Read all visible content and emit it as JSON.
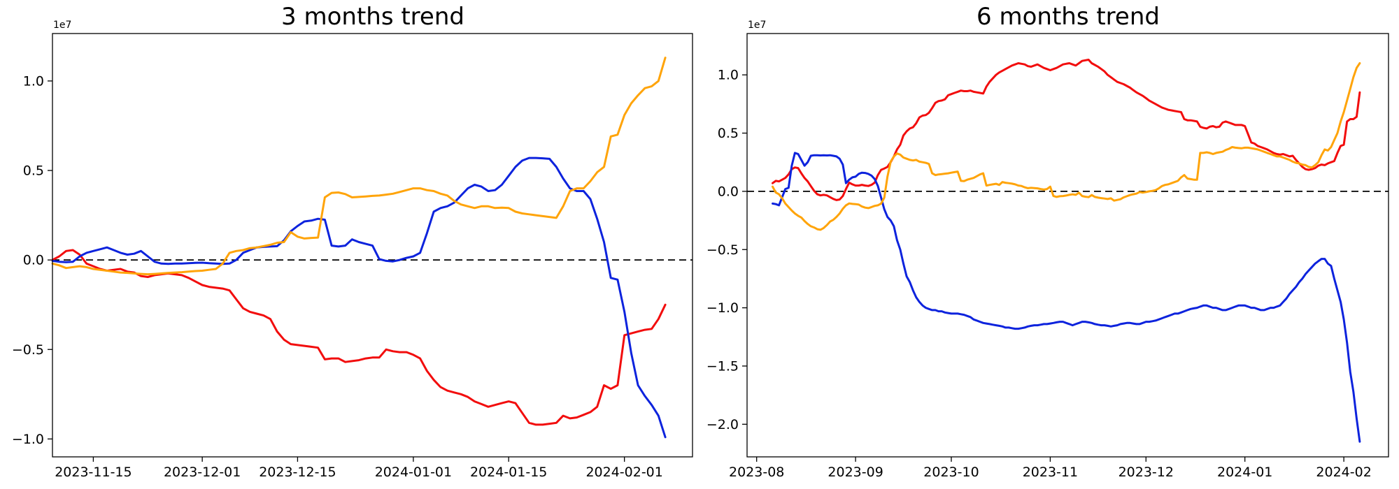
{
  "figure": {
    "background": "#ffffff"
  },
  "colors": {
    "red": "#f20d0d",
    "blue": "#0d23dd",
    "orange": "#ffa40a",
    "axis": "#000000"
  },
  "chart_data": [
    {
      "type": "line",
      "title": "3 months trend",
      "offset_label": "1e7",
      "xlabel": "",
      "ylabel": "",
      "grid": false,
      "legend": null,
      "zero_line": true,
      "xlim": [
        "2023-11-09",
        "2024-02-11"
      ],
      "ylim": [
        -1.1,
        1.265
      ],
      "yticks": [
        {
          "v": 1.0,
          "label": "1.0"
        },
        {
          "v": 0.5,
          "label": "0.5"
        },
        {
          "v": 0.0,
          "label": "0.0"
        },
        {
          "v": -0.5,
          "label": "−0.5"
        },
        {
          "v": -1.0,
          "label": "−1.0"
        }
      ],
      "xticks": [
        {
          "d": "2023-11-15",
          "label": "2023-11-15"
        },
        {
          "d": "2023-12-01",
          "label": "2023-12-01"
        },
        {
          "d": "2023-12-15",
          "label": "2023-12-15"
        },
        {
          "d": "2024-01-01",
          "label": "2024-01-01"
        },
        {
          "d": "2024-01-15",
          "label": "2024-01-15"
        },
        {
          "d": "2024-02-01",
          "label": "2024-02-01"
        }
      ],
      "unit": "1e7",
      "series": [
        {
          "name": "red",
          "color": "#f20d0d",
          "start": "2023-11-09",
          "step_days": 1,
          "values": [
            0,
            0.02,
            0.05,
            0.055,
            0.03,
            -0.02,
            -0.035,
            -0.05,
            -0.06,
            -0.055,
            -0.05,
            -0.065,
            -0.07,
            -0.09,
            -0.095,
            -0.085,
            -0.08,
            -0.075,
            -0.08,
            -0.085,
            -0.1,
            -0.12,
            -0.14,
            -0.15,
            -0.155,
            -0.16,
            -0.17,
            -0.22,
            -0.27,
            -0.29,
            -0.3,
            -0.31,
            -0.33,
            -0.4,
            -0.445,
            -0.47,
            -0.475,
            -0.48,
            -0.485,
            -0.49,
            -0.555,
            -0.55,
            -0.55,
            -0.57,
            -0.565,
            -0.56,
            -0.55,
            -0.545,
            -0.545,
            -0.5,
            -0.51,
            -0.515,
            -0.515,
            -0.53,
            -0.55,
            -0.62,
            -0.67,
            -0.71,
            -0.73,
            -0.74,
            -0.75,
            -0.765,
            -0.79,
            -0.805,
            -0.82,
            -0.81,
            -0.8,
            -0.79,
            -0.8,
            -0.855,
            -0.91,
            -0.92,
            -0.92,
            -0.915,
            -0.91,
            -0.87,
            -0.885,
            -0.88,
            -0.865,
            -0.85,
            -0.82,
            -0.7,
            -0.72,
            -0.7,
            -0.42,
            -0.41,
            -0.4,
            -0.39,
            -0.385,
            -0.33,
            -0.25
          ]
        },
        {
          "name": "blue",
          "color": "#0d23dd",
          "start": "2023-11-09",
          "step_days": 1,
          "values": [
            -0.005,
            -0.01,
            -0.012,
            -0.01,
            0.02,
            0.04,
            0.05,
            0.06,
            0.07,
            0.055,
            0.04,
            0.03,
            0.035,
            0.05,
            0.02,
            -0.01,
            -0.02,
            -0.022,
            -0.02,
            -0.02,
            -0.018,
            -0.016,
            -0.015,
            -0.018,
            -0.02,
            -0.022,
            -0.02,
            0,
            0.04,
            0.055,
            0.07,
            0.073,
            0.075,
            0.077,
            0.11,
            0.16,
            0.19,
            0.215,
            0.22,
            0.23,
            0.225,
            0.08,
            0.075,
            0.08,
            0.115,
            0.1,
            0.09,
            0.08,
            0.005,
            -0.005,
            -0.008,
            0,
            0.012,
            0.02,
            0.04,
            0.15,
            0.27,
            0.29,
            0.3,
            0.32,
            0.36,
            0.4,
            0.42,
            0.41,
            0.385,
            0.39,
            0.42,
            0.47,
            0.52,
            0.555,
            0.57,
            0.57,
            0.568,
            0.565,
            0.52,
            0.455,
            0.4,
            0.385,
            0.385,
            0.34,
            0.23,
            0.1,
            -0.1,
            -0.11,
            -0.29,
            -0.52,
            -0.7,
            -0.76,
            -0.81,
            -0.87,
            -0.99
          ]
        },
        {
          "name": "orange",
          "color": "#ffa40a",
          "start": "2023-11-09",
          "step_days": 1,
          "values": [
            -0.02,
            -0.03,
            -0.045,
            -0.04,
            -0.035,
            -0.04,
            -0.05,
            -0.055,
            -0.06,
            -0.065,
            -0.07,
            -0.072,
            -0.075,
            -0.078,
            -0.08,
            -0.078,
            -0.075,
            -0.072,
            -0.07,
            -0.068,
            -0.065,
            -0.062,
            -0.06,
            -0.055,
            -0.05,
            -0.02,
            0.04,
            0.05,
            0.055,
            0.066,
            0.07,
            0.077,
            0.085,
            0.096,
            0.1,
            0.155,
            0.13,
            0.12,
            0.123,
            0.125,
            0.35,
            0.375,
            0.377,
            0.368,
            0.35,
            0.352,
            0.355,
            0.358,
            0.36,
            0.365,
            0.37,
            0.38,
            0.39,
            0.4,
            0.4,
            0.39,
            0.385,
            0.37,
            0.36,
            0.33,
            0.31,
            0.3,
            0.29,
            0.3,
            0.3,
            0.29,
            0.292,
            0.29,
            0.27,
            0.26,
            0.255,
            0.25,
            0.245,
            0.24,
            0.235,
            0.3,
            0.385,
            0.4,
            0.4,
            0.44,
            0.49,
            0.52,
            0.69,
            0.7,
            0.81,
            0.875,
            0.92,
            0.96,
            0.97,
            1.0,
            1.13
          ]
        }
      ]
    },
    {
      "type": "line",
      "title": "6 months trend",
      "offset_label": "1e7",
      "xlabel": "",
      "ylabel": "",
      "grid": false,
      "legend": null,
      "zero_line": true,
      "xlim": [
        "2023-07-29",
        "2024-02-15"
      ],
      "ylim": [
        -2.28,
        1.355
      ],
      "yticks": [
        {
          "v": 1.0,
          "label": "1.0"
        },
        {
          "v": 0.5,
          "label": "0.5"
        },
        {
          "v": 0.0,
          "label": "0.0"
        },
        {
          "v": -0.5,
          "label": "−0.5"
        },
        {
          "v": -1.0,
          "label": "−1.0"
        },
        {
          "v": -1.5,
          "label": "−1.5"
        },
        {
          "v": -2.0,
          "label": "−2.0"
        }
      ],
      "xticks": [
        {
          "d": "2023-08-01",
          "label": "2023-08"
        },
        {
          "d": "2023-09-01",
          "label": "2023-09"
        },
        {
          "d": "2023-10-01",
          "label": "2023-10"
        },
        {
          "d": "2023-11-01",
          "label": "2023-11"
        },
        {
          "d": "2023-12-01",
          "label": "2023-12"
        },
        {
          "d": "2024-01-01",
          "label": "2024-01"
        },
        {
          "d": "2024-02-01",
          "label": "2024-02"
        }
      ],
      "unit": "1e7",
      "series": [
        {
          "name": "red",
          "color": "#f20d0d",
          "start": "2023-08-06",
          "step_days": 1,
          "values": [
            0.07,
            0.09,
            0.085,
            0.1,
            0.115,
            0.145,
            0.19,
            0.205,
            0.2,
            0.155,
            0.115,
            0.085,
            0.045,
            0.005,
            -0.025,
            -0.035,
            -0.03,
            -0.035,
            -0.05,
            -0.065,
            -0.075,
            -0.07,
            -0.04,
            0.02,
            0.075,
            0.06,
            0.05,
            0.05,
            0.056,
            0.05,
            0.046,
            0.056,
            0.075,
            0.14,
            0.185,
            0.196,
            0.21,
            0.25,
            0.3,
            0.36,
            0.4,
            0.48,
            0.515,
            0.54,
            0.55,
            0.585,
            0.635,
            0.65,
            0.655,
            0.675,
            0.715,
            0.76,
            0.775,
            0.78,
            0.79,
            0.825,
            0.835,
            0.845,
            0.855,
            0.865,
            0.86,
            0.86,
            0.865,
            0.855,
            0.85,
            0.845,
            0.84,
            0.9,
            0.94,
            0.97,
            1.0,
            1.02,
            1.035,
            1.05,
            1.065,
            1.08,
            1.09,
            1.1,
            1.095,
            1.09,
            1.075,
            1.07,
            1.08,
            1.09,
            1.075,
            1.06,
            1.05,
            1.04,
            1.05,
            1.06,
            1.075,
            1.09,
            1.095,
            1.1,
            1.09,
            1.08,
            1.1,
            1.12,
            1.125,
            1.13,
            1.1,
            1.085,
            1.07,
            1.05,
            1.03,
            1.0,
            0.98,
            0.96,
            0.94,
            0.93,
            0.92,
            0.905,
            0.89,
            0.87,
            0.85,
            0.835,
            0.82,
            0.8,
            0.78,
            0.765,
            0.75,
            0.735,
            0.72,
            0.71,
            0.7,
            0.695,
            0.69,
            0.685,
            0.68,
            0.62,
            0.61,
            0.61,
            0.605,
            0.6,
            0.555,
            0.545,
            0.54,
            0.555,
            0.56,
            0.55,
            0.555,
            0.59,
            0.6,
            0.59,
            0.58,
            0.57,
            0.57,
            0.57,
            0.56,
            0.49,
            0.42,
            0.41,
            0.39,
            0.38,
            0.37,
            0.36,
            0.345,
            0.33,
            0.32,
            0.315,
            0.32,
            0.31,
            0.3,
            0.305,
            0.27,
            0.24,
            0.21,
            0.19,
            0.185,
            0.19,
            0.2,
            0.22,
            0.23,
            0.225,
            0.24,
            0.25,
            0.26,
            0.33,
            0.39,
            0.4,
            0.6,
            0.62,
            0.62,
            0.64,
            0.85
          ]
        },
        {
          "name": "blue",
          "color": "#0d23dd",
          "start": "2023-08-06",
          "step_days": 1,
          "values": [
            -0.105,
            -0.11,
            -0.12,
            -0.05,
            0.02,
            0.03,
            0.22,
            0.33,
            0.32,
            0.27,
            0.22,
            0.25,
            0.305,
            0.31,
            0.31,
            0.308,
            0.31,
            0.308,
            0.31,
            0.305,
            0.3,
            0.28,
            0.23,
            0.07,
            0.1,
            0.12,
            0.126,
            0.15,
            0.16,
            0.158,
            0.15,
            0.135,
            0.105,
            0.046,
            -0.054,
            -0.154,
            -0.22,
            -0.25,
            -0.3,
            -0.42,
            -0.5,
            -0.62,
            -0.73,
            -0.78,
            -0.85,
            -0.91,
            -0.95,
            -0.98,
            -1.0,
            -1.01,
            -1.02,
            -1.02,
            -1.03,
            -1.03,
            -1.04,
            -1.045,
            -1.05,
            -1.05,
            -1.05,
            -1.055,
            -1.06,
            -1.07,
            -1.08,
            -1.1,
            -1.11,
            -1.12,
            -1.13,
            -1.135,
            -1.14,
            -1.145,
            -1.15,
            -1.155,
            -1.16,
            -1.17,
            -1.17,
            -1.175,
            -1.18,
            -1.18,
            -1.175,
            -1.17,
            -1.16,
            -1.155,
            -1.15,
            -1.15,
            -1.145,
            -1.14,
            -1.14,
            -1.135,
            -1.13,
            -1.125,
            -1.12,
            -1.12,
            -1.13,
            -1.14,
            -1.15,
            -1.14,
            -1.13,
            -1.12,
            -1.12,
            -1.125,
            -1.13,
            -1.14,
            -1.145,
            -1.15,
            -1.15,
            -1.155,
            -1.16,
            -1.155,
            -1.15,
            -1.14,
            -1.135,
            -1.13,
            -1.13,
            -1.135,
            -1.14,
            -1.14,
            -1.13,
            -1.12,
            -1.12,
            -1.115,
            -1.11,
            -1.1,
            -1.09,
            -1.08,
            -1.07,
            -1.06,
            -1.05,
            -1.05,
            -1.04,
            -1.03,
            -1.02,
            -1.01,
            -1.005,
            -1.0,
            -0.99,
            -0.98,
            -0.98,
            -0.99,
            -1.0,
            -1.0,
            -1.01,
            -1.02,
            -1.02,
            -1.01,
            -1.0,
            -0.99,
            -0.98,
            -0.98,
            -0.98,
            -0.99,
            -1.0,
            -1.0,
            -1.01,
            -1.02,
            -1.02,
            -1.01,
            -1.0,
            -1.0,
            -0.99,
            -0.98,
            -0.95,
            -0.92,
            -0.88,
            -0.85,
            -0.82,
            -0.78,
            -0.75,
            -0.71,
            -0.68,
            -0.65,
            -0.62,
            -0.6,
            -0.58,
            -0.58,
            -0.62,
            -0.64,
            -0.75,
            -0.85,
            -0.95,
            -1.1,
            -1.3,
            -1.55,
            -1.72,
            -1.95,
            -2.15
          ]
        },
        {
          "name": "orange",
          "color": "#ffa40a",
          "start": "2023-08-06",
          "step_days": 1,
          "values": [
            0.04,
            -0.01,
            -0.025,
            -0.06,
            -0.105,
            -0.135,
            -0.165,
            -0.19,
            -0.21,
            -0.225,
            -0.255,
            -0.28,
            -0.3,
            -0.31,
            -0.325,
            -0.33,
            -0.315,
            -0.29,
            -0.26,
            -0.245,
            -0.22,
            -0.19,
            -0.15,
            -0.12,
            -0.104,
            -0.108,
            -0.11,
            -0.114,
            -0.13,
            -0.14,
            -0.144,
            -0.135,
            -0.125,
            -0.12,
            -0.105,
            -0.054,
            0.126,
            0.255,
            0.3,
            0.325,
            0.315,
            0.29,
            0.28,
            0.27,
            0.265,
            0.27,
            0.255,
            0.25,
            0.245,
            0.235,
            0.155,
            0.14,
            0.145,
            0.148,
            0.152,
            0.155,
            0.16,
            0.165,
            0.17,
            0.09,
            0.088,
            0.1,
            0.108,
            0.115,
            0.13,
            0.145,
            0.155,
            0.05,
            0.055,
            0.06,
            0.065,
            0.055,
            0.08,
            0.074,
            0.07,
            0.066,
            0.06,
            0.05,
            0.046,
            0.035,
            0.027,
            0.03,
            0.028,
            0.026,
            0.02,
            0.015,
            0.02,
            0.04,
            -0.04,
            -0.048,
            -0.042,
            -0.04,
            -0.036,
            -0.03,
            -0.026,
            -0.03,
            -0.012,
            -0.04,
            -0.046,
            -0.05,
            -0.032,
            -0.048,
            -0.054,
            -0.058,
            -0.062,
            -0.066,
            -0.06,
            -0.08,
            -0.074,
            -0.068,
            -0.052,
            -0.042,
            -0.032,
            -0.025,
            -0.02,
            -0.006,
            -0.01,
            -0.006,
            0,
            0.004,
            0.01,
            0.025,
            0.045,
            0.055,
            0.06,
            0.07,
            0.08,
            0.09,
            0.12,
            0.14,
            0.11,
            0.105,
            0.1,
            0.1,
            0.33,
            0.33,
            0.335,
            0.33,
            0.32,
            0.33,
            0.335,
            0.34,
            0.355,
            0.365,
            0.38,
            0.375,
            0.372,
            0.37,
            0.375,
            0.375,
            0.37,
            0.365,
            0.36,
            0.35,
            0.34,
            0.33,
            0.32,
            0.31,
            0.3,
            0.3,
            0.29,
            0.28,
            0.27,
            0.255,
            0.245,
            0.24,
            0.23,
            0.225,
            0.21,
            0.205,
            0.225,
            0.25,
            0.31,
            0.36,
            0.35,
            0.38,
            0.44,
            0.5,
            0.6,
            0.68,
            0.78,
            0.88,
            0.98,
            1.06,
            1.1
          ]
        }
      ]
    }
  ]
}
